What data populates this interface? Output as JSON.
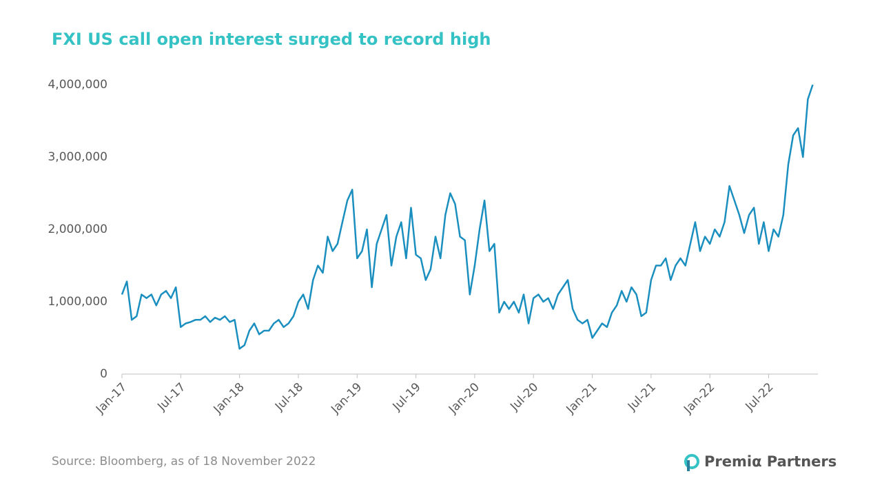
{
  "chart_data": {
    "type": "line",
    "title": "FXI US call open interest surged to record high",
    "source": "Source: Bloomberg, as of 18 November 2022",
    "logo": "Premiα Partners",
    "categories": [
      "Jan-17",
      null,
      null,
      null,
      null,
      null,
      null,
      null,
      null,
      null,
      null,
      null,
      "Jul-17",
      null,
      null,
      null,
      null,
      null,
      null,
      null,
      null,
      null,
      null,
      null,
      "Jan-18",
      null,
      null,
      null,
      null,
      null,
      null,
      null,
      null,
      null,
      null,
      null,
      "Jul-18",
      null,
      null,
      null,
      null,
      null,
      null,
      null,
      null,
      null,
      null,
      null,
      "Jan-19",
      null,
      null,
      null,
      null,
      null,
      null,
      null,
      null,
      null,
      null,
      null,
      "Jul-19",
      null,
      null,
      null,
      null,
      null,
      null,
      null,
      null,
      null,
      null,
      null,
      "Jan-20",
      null,
      null,
      null,
      null,
      null,
      null,
      null,
      null,
      null,
      null,
      null,
      "Jul-20",
      null,
      null,
      null,
      null,
      null,
      null,
      null,
      null,
      null,
      null,
      null,
      "Jan-21",
      null,
      null,
      null,
      null,
      null,
      null,
      null,
      null,
      null,
      null,
      null,
      "Jul-21",
      null,
      null,
      null,
      null,
      null,
      null,
      null,
      null,
      null,
      null,
      null,
      "Jan-22",
      null,
      null,
      null,
      null,
      null,
      null,
      null,
      null,
      null,
      null,
      null,
      "Jul-22",
      null,
      null,
      null,
      null,
      null,
      null,
      null,
      null,
      null
    ],
    "series": [
      {
        "name": "FXI US call open interest",
        "color": "#1a8fbf",
        "values": [
          1100000,
          1280000,
          750000,
          800000,
          1100000,
          1050000,
          1100000,
          950000,
          1100000,
          1150000,
          1050000,
          1200000,
          650000,
          700000,
          720000,
          750000,
          750000,
          800000,
          720000,
          780000,
          750000,
          800000,
          720000,
          750000,
          350000,
          400000,
          600000,
          700000,
          550000,
          600000,
          600000,
          700000,
          750000,
          650000,
          700000,
          800000,
          1000000,
          1100000,
          900000,
          1300000,
          1500000,
          1400000,
          1900000,
          1700000,
          1800000,
          2100000,
          2400000,
          2550000,
          1600000,
          1700000,
          2000000,
          1200000,
          1800000,
          2000000,
          2200000,
          1500000,
          1900000,
          2100000,
          1600000,
          2300000,
          1650000,
          1600000,
          1300000,
          1450000,
          1900000,
          1600000,
          2200000,
          2500000,
          2350000,
          1900000,
          1850000,
          1100000,
          1500000,
          2000000,
          2400000,
          1700000,
          1800000,
          850000,
          1000000,
          900000,
          1000000,
          850000,
          1100000,
          700000,
          1050000,
          1100000,
          1000000,
          1050000,
          900000,
          1100000,
          1200000,
          1300000,
          900000,
          750000,
          700000,
          750000,
          500000,
          600000,
          700000,
          650000,
          850000,
          950000,
          1150000,
          1000000,
          1200000,
          1100000,
          800000,
          850000,
          1300000,
          1500000,
          1500000,
          1600000,
          1300000,
          1500000,
          1600000,
          1500000,
          1800000,
          2100000,
          1700000,
          1900000,
          1800000,
          2000000,
          1900000,
          2100000,
          2600000,
          2400000,
          2200000,
          1950000,
          2200000,
          2300000,
          1800000,
          2100000,
          1700000,
          2000000,
          1900000,
          2200000,
          2900000,
          3300000,
          3400000,
          3000000,
          3800000,
          4000000
        ]
      }
    ],
    "ylim": [
      0,
      4000000
    ],
    "yticks": [
      0,
      {
        "value": 1000000,
        "label": "1,000,000"
      },
      {
        "value": 2000000,
        "label": "2,000,000"
      },
      {
        "value": 3000000,
        "label": "3,000,000"
      },
      {
        "value": 4000000,
        "label": "4,000,000"
      }
    ],
    "grid": false
  }
}
